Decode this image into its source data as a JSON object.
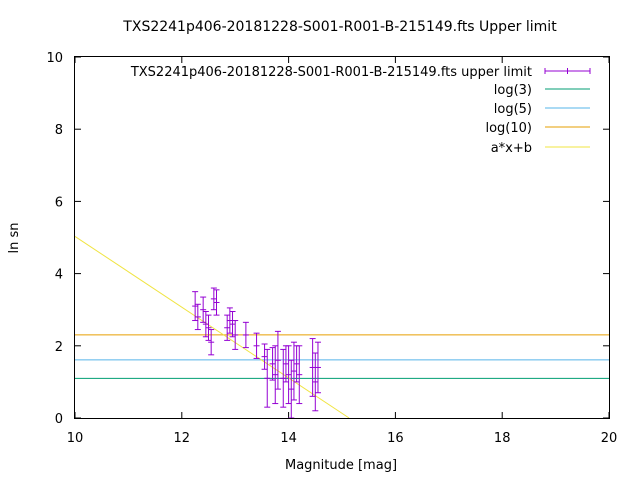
{
  "chart_data": {
    "type": "scatter",
    "title": "TXS2241p406-20181228-S001-R001-B-215149.fts Upper limit",
    "xlabel": "Magnitude [mag]",
    "ylabel": "ln sn",
    "xlim": [
      10,
      20
    ],
    "ylim": [
      0,
      10
    ],
    "xticks": [
      10,
      12,
      14,
      16,
      18,
      20
    ],
    "yticks": [
      0,
      2,
      4,
      6,
      8,
      10
    ],
    "xtick_labels": [
      "10",
      "12",
      "14",
      "16",
      "18",
      "20"
    ],
    "ytick_labels": [
      "0",
      "2",
      "4",
      "6",
      "8",
      "10"
    ],
    "legend_position": "top-right",
    "grid": false,
    "series": [
      {
        "name": "TXS2241p406-20181228-S001-R001-B-215149.fts upper limit",
        "kind": "errorbar",
        "color": "#9400d3",
        "points": [
          {
            "x": 12.25,
            "y": 3.1,
            "err": 0.4
          },
          {
            "x": 12.3,
            "y": 2.8,
            "err": 0.35
          },
          {
            "x": 12.4,
            "y": 3.0,
            "err": 0.35
          },
          {
            "x": 12.45,
            "y": 2.6,
            "err": 0.35
          },
          {
            "x": 12.5,
            "y": 2.5,
            "err": 0.35
          },
          {
            "x": 12.55,
            "y": 2.1,
            "err": 0.35
          },
          {
            "x": 12.6,
            "y": 3.3,
            "err": 0.3
          },
          {
            "x": 12.65,
            "y": 3.2,
            "err": 0.35
          },
          {
            "x": 12.85,
            "y": 2.5,
            "err": 0.35
          },
          {
            "x": 12.9,
            "y": 2.7,
            "err": 0.35
          },
          {
            "x": 12.95,
            "y": 2.6,
            "err": 0.35
          },
          {
            "x": 13.0,
            "y": 2.3,
            "err": 0.4
          },
          {
            "x": 13.2,
            "y": 2.3,
            "err": 0.35
          },
          {
            "x": 13.4,
            "y": 2.0,
            "err": 0.35
          },
          {
            "x": 13.55,
            "y": 1.7,
            "err": 0.35
          },
          {
            "x": 13.6,
            "y": 1.1,
            "err": 0.8
          },
          {
            "x": 13.7,
            "y": 1.5,
            "err": 0.45
          },
          {
            "x": 13.75,
            "y": 1.2,
            "err": 0.8
          },
          {
            "x": 13.8,
            "y": 1.6,
            "err": 0.8
          },
          {
            "x": 13.9,
            "y": 1.1,
            "err": 0.8
          },
          {
            "x": 13.95,
            "y": 1.5,
            "err": 0.5
          },
          {
            "x": 14.0,
            "y": 1.2,
            "err": 0.8
          },
          {
            "x": 14.05,
            "y": 0.8,
            "err": 0.8
          },
          {
            "x": 14.1,
            "y": 1.3,
            "err": 0.8
          },
          {
            "x": 14.15,
            "y": 1.5,
            "err": 0.5
          },
          {
            "x": 14.2,
            "y": 1.2,
            "err": 0.8
          },
          {
            "x": 14.45,
            "y": 1.4,
            "err": 0.8
          },
          {
            "x": 14.5,
            "y": 1.0,
            "err": 0.8
          },
          {
            "x": 14.55,
            "y": 1.4,
            "err": 0.7
          }
        ]
      },
      {
        "name": "log(3)",
        "kind": "hline",
        "y": 1.0986,
        "color": "#009e73"
      },
      {
        "name": "log(5)",
        "kind": "hline",
        "y": 1.6094,
        "color": "#56b4e9"
      },
      {
        "name": "log(10)",
        "kind": "hline",
        "y": 2.3026,
        "color": "#e69f00"
      },
      {
        "name": "a*x+b",
        "kind": "fitline",
        "a": -0.98,
        "b": 14.83,
        "color": "#f0e442"
      }
    ]
  }
}
